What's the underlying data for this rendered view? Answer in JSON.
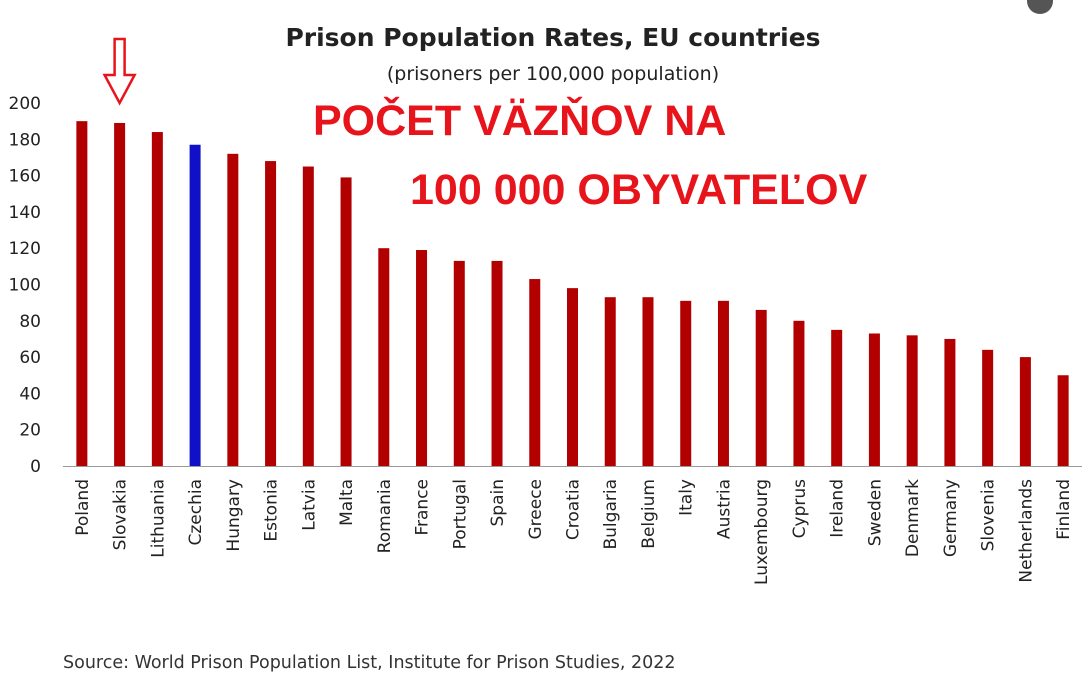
{
  "chart_data": {
    "type": "bar",
    "title": "Prison Population Rates, EU countries",
    "subtitle": "(prisoners per 100,000 population)",
    "categories": [
      "Poland",
      "Slovakia",
      "Lithuania",
      "Czechia",
      "Hungary",
      "Estonia",
      "Latvia",
      "Malta",
      "Romania",
      "France",
      "Portugal",
      "Spain",
      "Greece",
      "Croatia",
      "Bulgaria",
      "Belgium",
      "Italy",
      "Austria",
      "Luxembourg",
      "Cyprus",
      "Ireland",
      "Sweden",
      "Denmark",
      "Germany",
      "Slovenia",
      "Netherlands",
      "Finland"
    ],
    "values": [
      190,
      189,
      184,
      177,
      172,
      168,
      165,
      159,
      120,
      119,
      113,
      113,
      103,
      98,
      93,
      93,
      91,
      91,
      86,
      80,
      75,
      73,
      72,
      70,
      64,
      60,
      50
    ],
    "highlight_category": "Czechia",
    "colors": {
      "default": "#b20000",
      "highlight": "#1010c8"
    },
    "ylim": [
      0,
      200
    ],
    "yticks": [
      0,
      20,
      40,
      60,
      80,
      100,
      120,
      140,
      160,
      180,
      200
    ],
    "grid": false,
    "xlabel": "",
    "ylabel": "",
    "source": "Source: World Prison Population List, Institute for Prison Studies, 2022"
  },
  "overlay": {
    "line1": "POČET VÄZŇOV NA",
    "line2": "100 000 OBYVATEĽOV",
    "color": "#e8141c",
    "arrow_target": "Slovakia",
    "arrow_icon": "down-arrow-icon"
  }
}
